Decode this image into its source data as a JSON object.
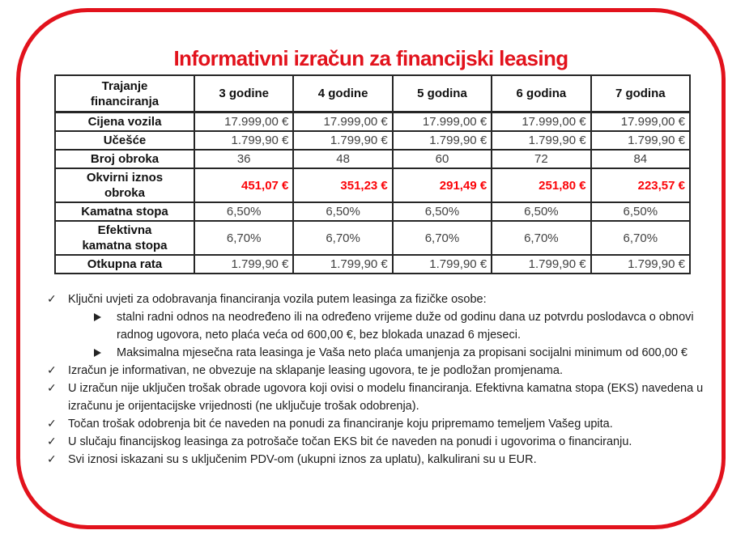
{
  "page": {
    "title": "Informativni izračun za financijski leasing",
    "accent_red": "#e2121c",
    "value_red": "#fb0409"
  },
  "table": {
    "header": [
      "Trajanje\nfinanciranja",
      "3 godine",
      "4 godine",
      "5 godina",
      "6 godina",
      "7 godina"
    ],
    "rows": [
      {
        "label": "Cijena vozila",
        "values": [
          "17.999,00 €",
          "17.999,00 €",
          "17.999,00 €",
          "17.999,00 €",
          "17.999,00 €"
        ],
        "align": "right",
        "highlight": false
      },
      {
        "label": "Učešće",
        "values": [
          "1.799,90 €",
          "1.799,90 €",
          "1.799,90 €",
          "1.799,90 €",
          "1.799,90 €"
        ],
        "align": "right",
        "highlight": false
      },
      {
        "label": "Broj obroka",
        "values": [
          "36",
          "48",
          "60",
          "72",
          "84"
        ],
        "align": "center",
        "highlight": false
      },
      {
        "label": "Okvirni iznos\nobroka",
        "values": [
          "451,07 €",
          "351,23 €",
          "291,49 €",
          "251,80 €",
          "223,57 €"
        ],
        "align": "right",
        "highlight": true
      },
      {
        "label": "Kamatna stopa",
        "values": [
          "6,50%",
          "6,50%",
          "6,50%",
          "6,50%",
          "6,50%"
        ],
        "align": "center",
        "highlight": false
      },
      {
        "label": "Efektivna\nkamatna stopa",
        "values": [
          "6,70%",
          "6,70%",
          "6,70%",
          "6,70%",
          "6,70%"
        ],
        "align": "center",
        "highlight": false
      },
      {
        "label": "Otkupna rata",
        "values": [
          "1.799,90 €",
          "1.799,90 €",
          "1.799,90 €",
          "1.799,90 €",
          "1.799,90 €"
        ],
        "align": "right",
        "highlight": false
      }
    ]
  },
  "notes": [
    {
      "level": 1,
      "marker": "✓",
      "text": "Ključni uvjeti za odobravanja financiranja vozila putem leasinga za fizičke osobe:"
    },
    {
      "level": 2,
      "marker": "➢",
      "text": "stalni radni odnos na neodređeno ili na određeno vrijeme duže od godinu dana uz potvrdu poslodavca o obnovi radnog ugovora, neto plaća veća od 600,00 €, bez blokada unazad 6 mjeseci."
    },
    {
      "level": 2,
      "marker": "➢",
      "text": "Maksimalna mjesečna rata leasinga je Vaša neto plaća umanjenja za propisani socijalni minimum od 600,00 €"
    },
    {
      "level": 1,
      "marker": "✓",
      "text": "Izračun je informativan, ne obvezuje na sklapanje leasing ugovora, te je podložan promjenama."
    },
    {
      "level": 1,
      "marker": "✓",
      "text": "U izračun nije uključen trošak obrade ugovora koji ovisi o modelu financiranja. Efektivna kamatna stopa (EKS) navedena u izračunu je orijentacijske vrijednosti (ne uključuje trošak odobrenja)."
    },
    {
      "level": 1,
      "marker": "✓",
      "text": "Točan trošak odobrenja bit će naveden na ponudi za financiranje koju pripremamo temeljem Vašeg upita."
    },
    {
      "level": 1,
      "marker": "✓",
      "text": "U slučaju financijskog leasinga za potrošače točan EKS bit će naveden na ponudi i ugovorima o financiranju."
    },
    {
      "level": 1,
      "marker": "✓",
      "text": "Svi iznosi iskazani su s uključenim PDV-om (ukupni iznos za uplatu), kalkulirani su u EUR."
    }
  ]
}
